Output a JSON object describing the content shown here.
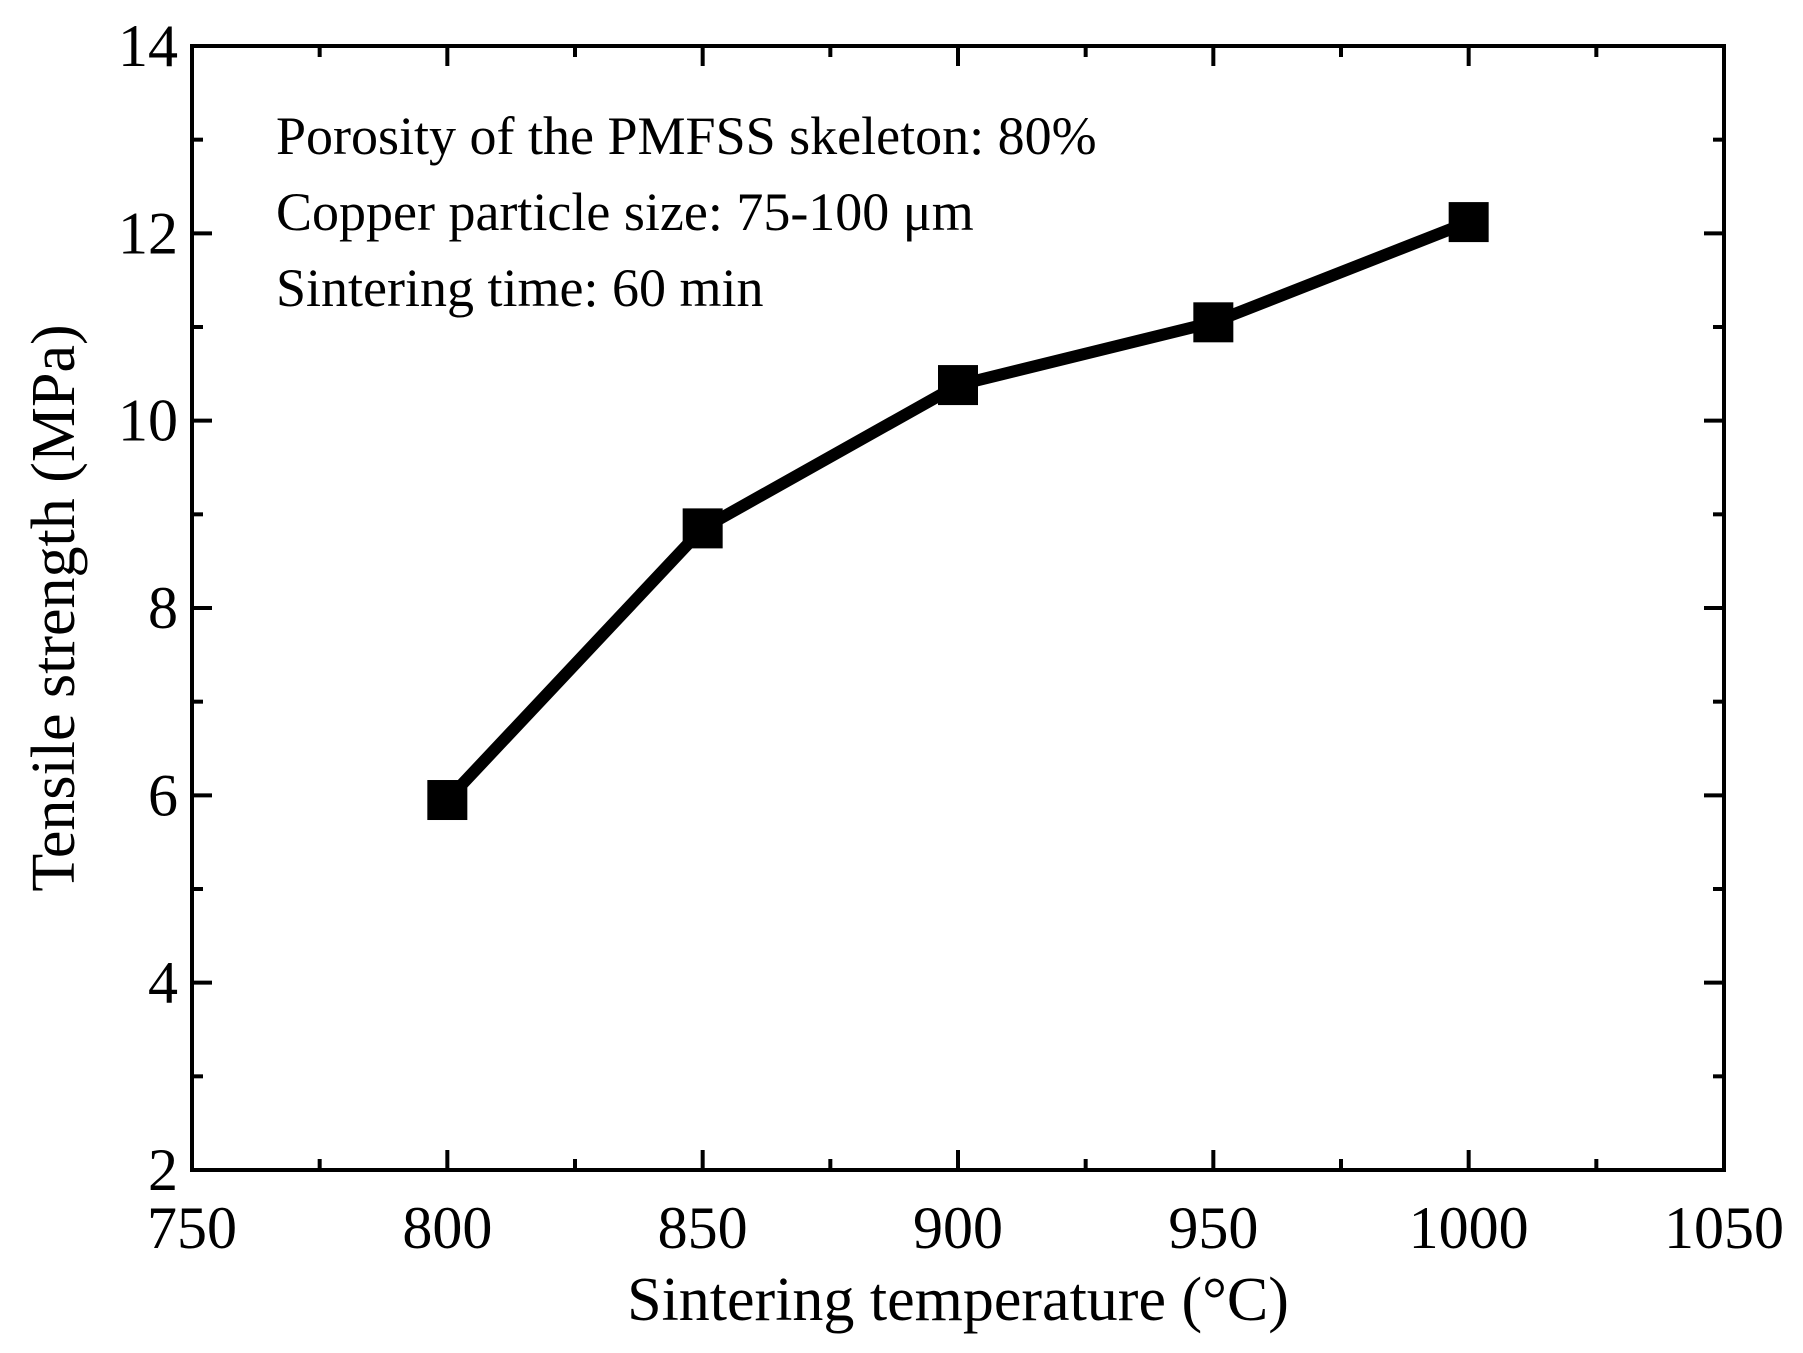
{
  "chart_data": {
    "type": "line",
    "title": "",
    "xlabel": "Sintering temperature (°C)",
    "ylabel": "Tensile strength (MPa)",
    "xlim": [
      750,
      1050
    ],
    "ylim": [
      2,
      14
    ],
    "x_ticks": [
      750,
      800,
      850,
      900,
      950,
      1000,
      1050
    ],
    "x_tick_labels": [
      "750",
      "800",
      "850",
      "900",
      "950",
      "1000",
      "1050"
    ],
    "x_minor_step": 25,
    "y_ticks": [
      2,
      4,
      6,
      8,
      10,
      12,
      14
    ],
    "y_tick_labels": [
      "2",
      "4",
      "6",
      "8",
      "10",
      "12",
      "14"
    ],
    "y_minor_step": 1,
    "grid": false,
    "legend": "none",
    "series": [
      {
        "name": "Tensile strength",
        "marker": "square",
        "color": "#000000",
        "x": [
          800,
          850,
          900,
          950,
          1000
        ],
        "values": [
          5.95,
          8.85,
          10.38,
          11.05,
          12.12
        ]
      }
    ],
    "annotations": [
      "Porosity of the PMFSS skeleton: 80%",
      "Copper particle size: 75-100 μm",
      "Sintering time: 60 min"
    ]
  }
}
